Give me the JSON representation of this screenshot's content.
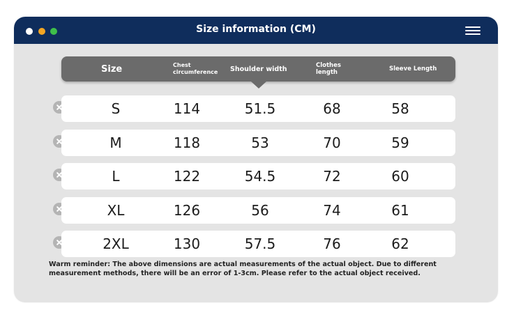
{
  "window": {
    "title": "Size information (CM)",
    "dots": [
      "#ffffff",
      "#f5a623",
      "#3fbf4a"
    ],
    "titlebar_color": "#0f2d5c"
  },
  "table": {
    "headers": {
      "size": "Size",
      "chest_line1": "Chest",
      "chest_line2": "circumference",
      "shoulder": "Shoulder width",
      "clothes_line1": "Clothes",
      "clothes_line2": "length",
      "sleeve": "Sleeve Length"
    },
    "rows": [
      {
        "size": "S",
        "chest": "114",
        "shoulder": "51.5",
        "length": "68",
        "sleeve": "58"
      },
      {
        "size": "M",
        "chest": "118",
        "shoulder": "53",
        "length": "70",
        "sleeve": "59"
      },
      {
        "size": "L",
        "chest": "122",
        "shoulder": "54.5",
        "length": "72",
        "sleeve": "60"
      },
      {
        "size": "XL",
        "chest": "126",
        "shoulder": "56",
        "length": "74",
        "sleeve": "61"
      },
      {
        "size": "2XL",
        "chest": "130",
        "shoulder": "57.5",
        "length": "76",
        "sleeve": "62"
      }
    ]
  },
  "note": {
    "line1": "Warm reminder: The above dimensions are actual measurements of the actual object. Due to different",
    "line2": "measurement methods, there will be an error of 1-3cm. Please refer to the actual object received."
  }
}
